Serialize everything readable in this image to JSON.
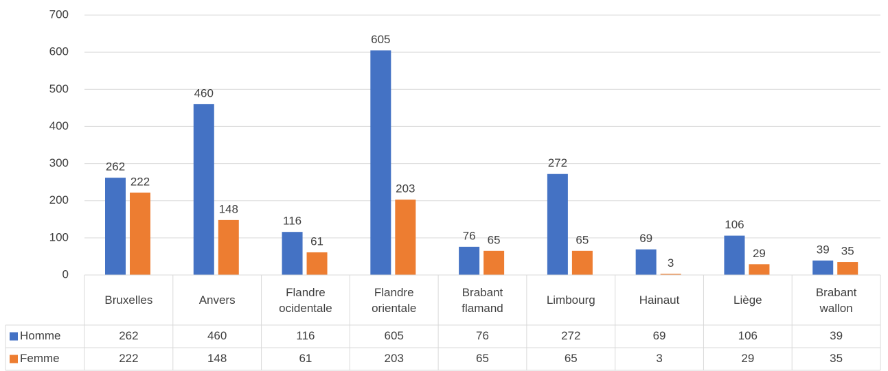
{
  "chart_data": {
    "type": "bar",
    "categories": [
      "Bruxelles",
      "Anvers",
      "Flandre ocidentale",
      "Flandre orientale",
      "Brabant flamand",
      "Limbourg",
      "Hainaut",
      "Liège",
      "Brabant wallon"
    ],
    "series": [
      {
        "name": "Homme",
        "color": "#4472c4",
        "values": [
          262,
          460,
          116,
          605,
          76,
          272,
          69,
          106,
          39
        ]
      },
      {
        "name": "Femme",
        "color": "#ed7d31",
        "values": [
          222,
          148,
          61,
          203,
          65,
          65,
          3,
          29,
          35
        ]
      }
    ],
    "ylim": [
      0,
      700
    ],
    "yticks": [
      0,
      100,
      200,
      300,
      400,
      500,
      600,
      700
    ],
    "grid": true,
    "data_table": true
  }
}
